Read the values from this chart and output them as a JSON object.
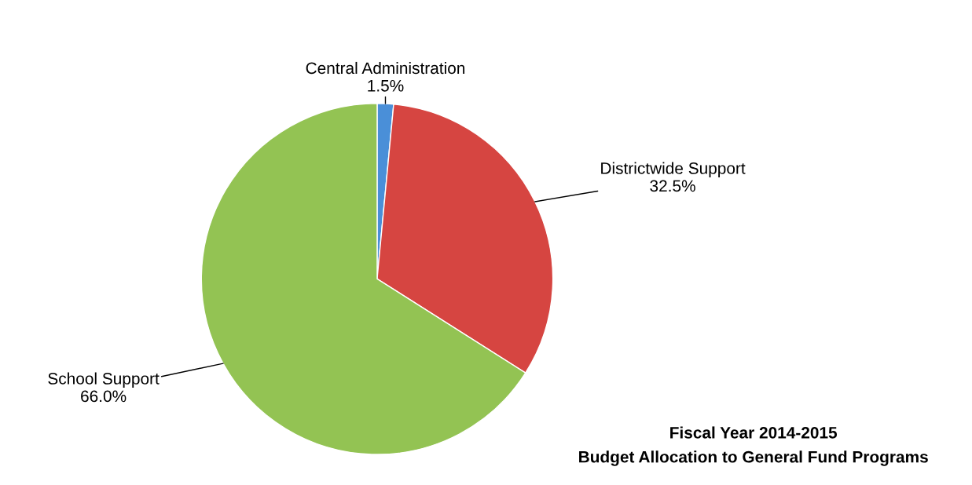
{
  "chart_data": {
    "type": "pie",
    "title": "Fiscal Year 2014-2015",
    "subtitle": "Budget Allocation to General Fund Programs",
    "categories": [
      "Central Administration",
      "Districtwide Support",
      "School Support"
    ],
    "values": [
      1.5,
      32.5,
      66.0
    ],
    "colors": [
      "#4a8fd8",
      "#d64541",
      "#93c353"
    ],
    "value_labels": [
      "1.5%",
      "32.5%",
      "66.0%"
    ],
    "legend": false
  }
}
